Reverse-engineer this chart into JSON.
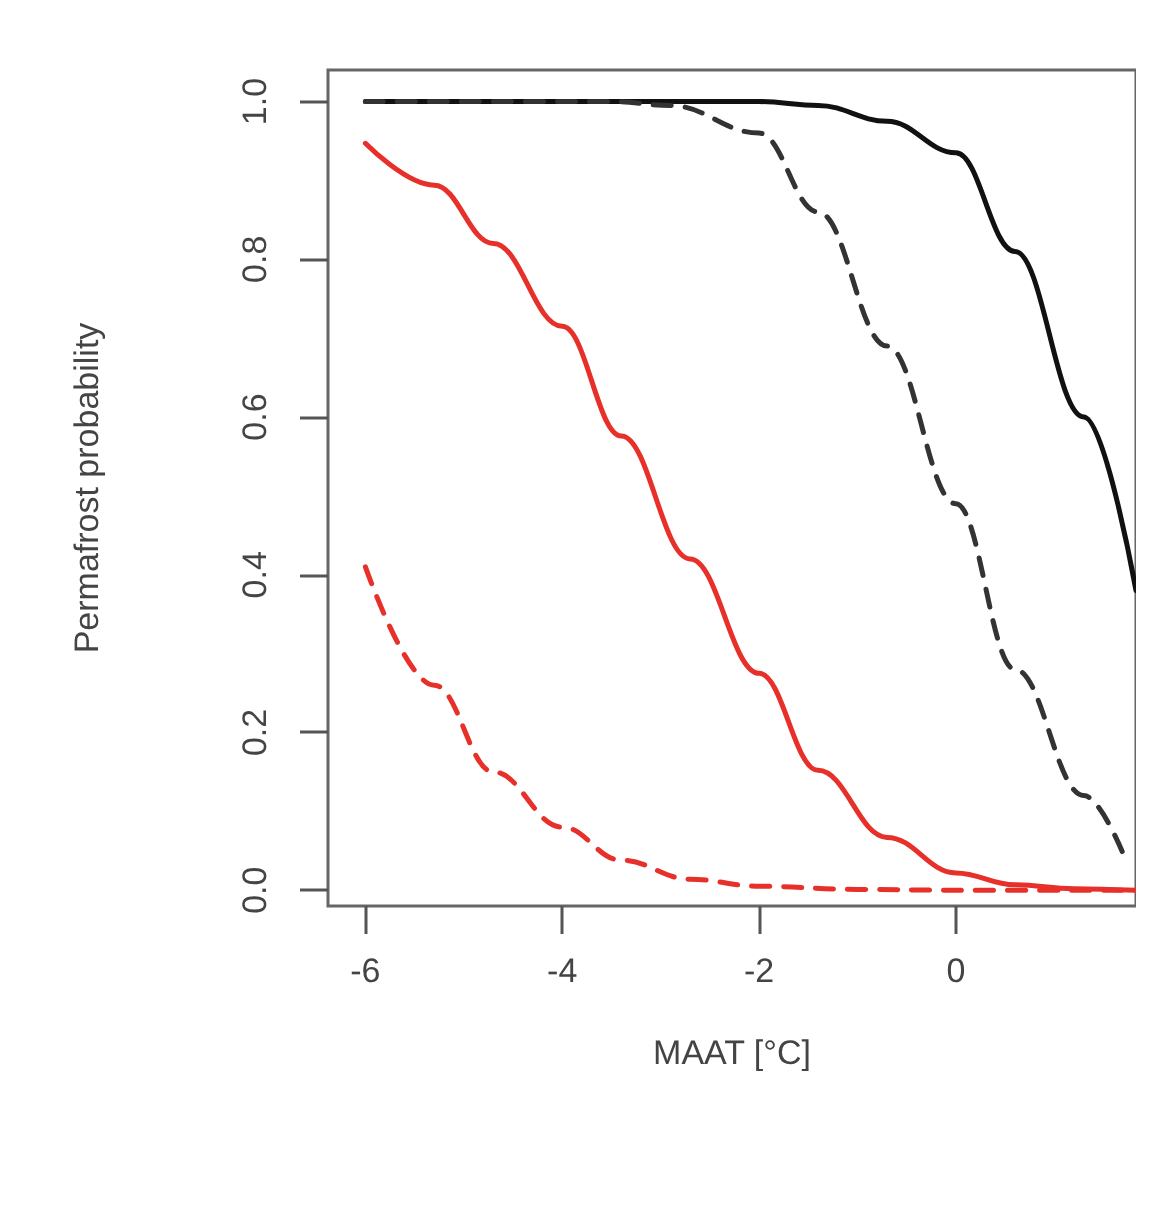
{
  "chart_data": {
    "type": "line",
    "xlabel": "MAAT [°C]",
    "ylabel": "Permafrost probability",
    "xlim": [
      -6.38,
      1.83
    ],
    "xticks": [
      -6,
      -4,
      -2,
      0
    ],
    "ylim": [
      -0.02,
      1.04
    ],
    "yticks": [
      {
        "value": 0,
        "label": "0.0"
      },
      {
        "value": 0.2,
        "label": "0.2"
      },
      {
        "value": 0.4,
        "label": "0.4"
      },
      {
        "value": 0.6,
        "label": "0.6"
      },
      {
        "value": 0.8,
        "label": "0.8"
      },
      {
        "value": 1,
        "label": "1.0"
      }
    ],
    "grid": false,
    "marker": "none",
    "series": [
      {
        "color": "#111111",
        "line_style": "solid",
        "x": [
          -6,
          -2,
          -1.4,
          -0.7,
          0,
          0.6,
          1.3,
          1.83
        ],
        "values": [
          1,
          1,
          0.995,
          0.975,
          0.935,
          0.81,
          0.6,
          0.38
        ]
      },
      {
        "color": "#333333",
        "line_style": "dashed",
        "x": [
          -6,
          -3.5,
          -2.9,
          -2,
          -1.4,
          -0.7,
          0,
          0.6,
          1.3,
          1.7
        ],
        "values": [
          1,
          1,
          0.995,
          0.96,
          0.86,
          0.69,
          0.49,
          0.28,
          0.12,
          0.046
        ]
      },
      {
        "color": "#e8302a",
        "line_style": "solid",
        "x": [
          -6,
          -5.3,
          -4.7,
          -4,
          -3.4,
          -2.7,
          -2,
          -1.4,
          -0.7,
          0,
          0.6,
          1.2,
          1.83
        ],
        "values": [
          0.947,
          0.894,
          0.82,
          0.715,
          0.576,
          0.42,
          0.275,
          0.152,
          0.067,
          0.022,
          0.007,
          0.002,
          0
        ]
      },
      {
        "color": "#e8302a",
        "line_style": "dashed",
        "x": [
          -6,
          -5.3,
          -4.7,
          -4,
          -3.4,
          -2.7,
          -2,
          -1,
          0,
          1.83
        ],
        "values": [
          0.41,
          0.26,
          0.15,
          0.08,
          0.038,
          0.014,
          0.005,
          0.001,
          0,
          0
        ]
      }
    ]
  }
}
